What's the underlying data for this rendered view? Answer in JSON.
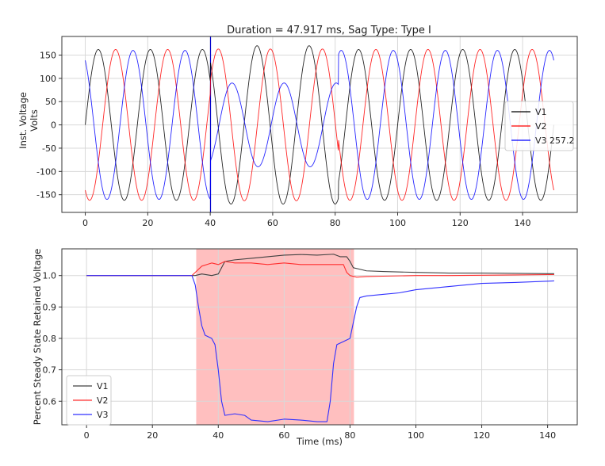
{
  "chart_data": [
    {
      "type": "line",
      "title": "Duration = 47.917 ms, Sag Type: Type I",
      "xlabel": "",
      "ylabel": "Inst. Voltage\nVolts",
      "xlim": [
        -7.5,
        157.5
      ],
      "ylim": [
        -188,
        190
      ],
      "xticks": [
        0,
        20,
        40,
        60,
        80,
        100,
        120,
        140
      ],
      "yticks": [
        -150,
        -100,
        -50,
        0,
        50,
        100,
        150
      ],
      "grid": true,
      "legend": "center-right",
      "vline": {
        "x": 40.1,
        "color": "#0000cc"
      },
      "frequency_hz": 60,
      "sag_window_ms": [
        40.1,
        81.0
      ],
      "series": [
        {
          "name": "V1",
          "color": "#000000",
          "amplitude": 162,
          "phase_deg": 0,
          "sag_amplitude": 170,
          "sag_phase_deg": -18
        },
        {
          "name": "V2",
          "color": "#ff0000",
          "amplitude": 162,
          "phase_deg": -120,
          "sag_amplitude": 163,
          "sag_phase_deg": -110
        },
        {
          "name": "V3 257.2",
          "color": "#0000ff",
          "amplitude": 160,
          "phase_deg": 120,
          "sag_amplitude": 90,
          "sag_phase_deg": 155
        }
      ]
    },
    {
      "type": "line",
      "title": "",
      "xlabel": "Time (ms)",
      "ylabel": "Percent Steady State Retained Voltage",
      "xlim": [
        -7.5,
        149
      ],
      "ylim": [
        0.525,
        1.085
      ],
      "xticks": [
        0,
        20,
        40,
        60,
        80,
        100,
        120,
        140
      ],
      "yticks": [
        0.6,
        0.7,
        0.8,
        0.9,
        1.0
      ],
      "grid": true,
      "legend": "lower-left",
      "span": {
        "x0": 33.3,
        "x1": 81.2,
        "color": "#ff8080"
      },
      "series": [
        {
          "name": "V1",
          "color": "#404040",
          "x": [
            0,
            32,
            33,
            35,
            38,
            40,
            42,
            45,
            50,
            55,
            60,
            65,
            70,
            75,
            77,
            79,
            80,
            81,
            83,
            85,
            90,
            100,
            110,
            120,
            130,
            140,
            142
          ],
          "y": [
            1.0,
            1.0,
            1.0,
            1.005,
            1.0,
            1.005,
            1.045,
            1.05,
            1.055,
            1.06,
            1.065,
            1.067,
            1.065,
            1.068,
            1.06,
            1.06,
            1.045,
            1.025,
            1.02,
            1.015,
            1.013,
            1.01,
            1.008,
            1.008,
            1.007,
            1.006,
            1.006
          ]
        },
        {
          "name": "V2",
          "color": "#ff3030",
          "x": [
            0,
            32,
            33,
            35,
            38,
            40,
            42,
            45,
            50,
            55,
            60,
            65,
            70,
            75,
            78,
            79,
            80,
            82,
            85,
            90,
            100,
            110,
            120,
            130,
            140,
            142
          ],
          "y": [
            1.0,
            1.0,
            1.01,
            1.03,
            1.04,
            1.035,
            1.045,
            1.04,
            1.04,
            1.035,
            1.04,
            1.035,
            1.035,
            1.035,
            1.035,
            1.01,
            1.0,
            0.995,
            0.997,
            0.998,
            1.0,
            1.0,
            1.001,
            1.002,
            1.003,
            1.003
          ]
        },
        {
          "name": "V3",
          "color": "#3030ff",
          "x": [
            0,
            32,
            33,
            34,
            35,
            36,
            37,
            38,
            39,
            40,
            41,
            42,
            45,
            48,
            50,
            55,
            60,
            65,
            70,
            73,
            74,
            75,
            76,
            78,
            79,
            80,
            81,
            82,
            83,
            85,
            90,
            95,
            100,
            105,
            110,
            115,
            120,
            130,
            140,
            142
          ],
          "y": [
            1.0,
            1.0,
            0.97,
            0.9,
            0.84,
            0.81,
            0.805,
            0.8,
            0.78,
            0.7,
            0.6,
            0.555,
            0.56,
            0.555,
            0.54,
            0.535,
            0.543,
            0.54,
            0.535,
            0.535,
            0.6,
            0.72,
            0.78,
            0.79,
            0.795,
            0.8,
            0.85,
            0.9,
            0.93,
            0.935,
            0.94,
            0.945,
            0.955,
            0.96,
            0.965,
            0.97,
            0.975,
            0.978,
            0.982,
            0.983
          ]
        }
      ]
    }
  ]
}
